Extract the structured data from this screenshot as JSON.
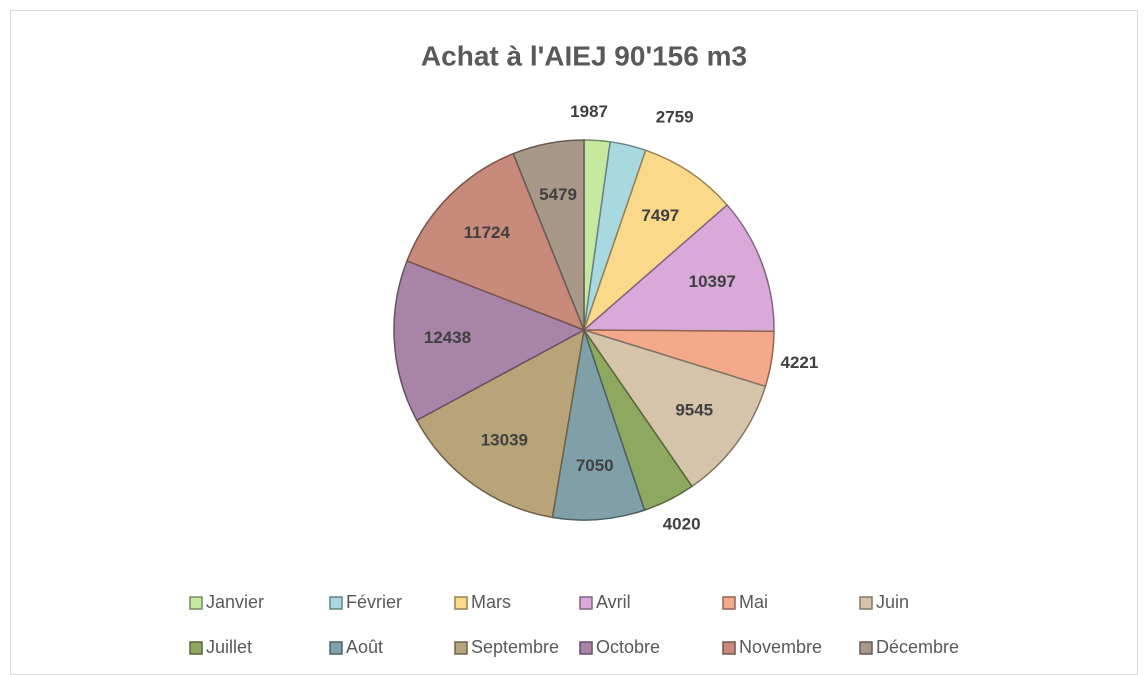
{
  "chart_data": {
    "type": "pie",
    "title": "Achat à l'AIEJ 90'156 m3",
    "categories": [
      "Janvier",
      "Février",
      "Mars",
      "Avril",
      "Mai",
      "Juin",
      "Juillet",
      "Août",
      "Septembre",
      "Octobre",
      "Novembre",
      "Décembre"
    ],
    "values": [
      1987,
      2759,
      7497,
      10397,
      4221,
      9545,
      4020,
      7050,
      13039,
      12438,
      11724,
      5479
    ],
    "colors": [
      "#c6e9a0",
      "#a9d9e0",
      "#fad98a",
      "#d9a9d9",
      "#f4a98a",
      "#d5c4aa",
      "#8fa860",
      "#7fa0a8",
      "#b8a478",
      "#a885a8",
      "#c88a7a",
      "#a89888"
    ],
    "legend": "bottom"
  }
}
